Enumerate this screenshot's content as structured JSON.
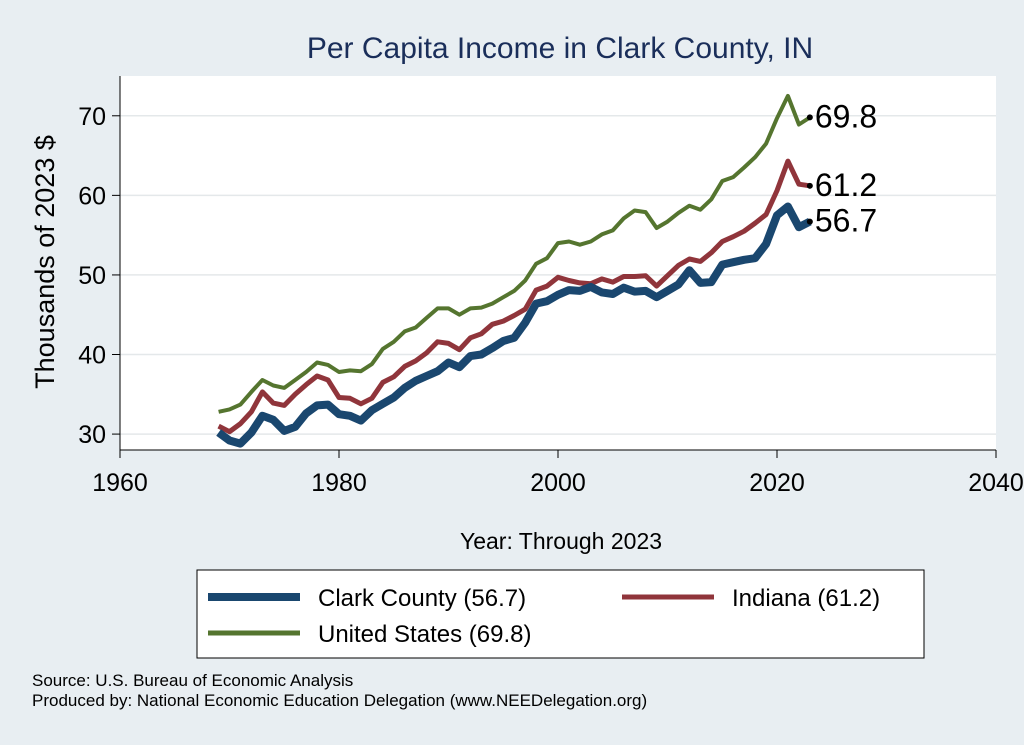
{
  "chart_data": {
    "type": "line",
    "title": "Per Capita Income in Clark County, IN",
    "xlabel": "Year: Through 2023",
    "ylabel": "Thousands of 2023 $",
    "xlim": [
      1960,
      2040
    ],
    "ylim": [
      28,
      75
    ],
    "x_ticks": [
      1960,
      1980,
      2000,
      2020,
      2040
    ],
    "y_ticks": [
      30,
      40,
      50,
      60,
      70
    ],
    "grid": true,
    "legend_position": "bottom",
    "x": [
      1969,
      1970,
      1971,
      1972,
      1973,
      1974,
      1975,
      1976,
      1977,
      1978,
      1979,
      1980,
      1981,
      1982,
      1983,
      1984,
      1985,
      1986,
      1987,
      1988,
      1989,
      1990,
      1991,
      1992,
      1993,
      1994,
      1995,
      1996,
      1997,
      1998,
      1999,
      2000,
      2001,
      2002,
      2003,
      2004,
      2005,
      2006,
      2007,
      2008,
      2009,
      2010,
      2011,
      2012,
      2013,
      2014,
      2015,
      2016,
      2017,
      2018,
      2019,
      2020,
      2021,
      2022,
      2023
    ],
    "series": [
      {
        "name": "Clark County (56.7)",
        "color": "#1a476f",
        "end_label": "56.7",
        "values": [
          30.2,
          29.2,
          28.8,
          30.2,
          32.3,
          31.8,
          30.4,
          30.9,
          32.6,
          33.6,
          33.7,
          32.5,
          32.3,
          31.7,
          33.0,
          33.8,
          34.6,
          35.8,
          36.7,
          37.3,
          37.9,
          39.0,
          38.4,
          39.8,
          40.0,
          40.8,
          41.7,
          42.1,
          44.0,
          46.4,
          46.7,
          47.5,
          48.1,
          48.0,
          48.5,
          47.8,
          47.6,
          48.4,
          47.9,
          48.0,
          47.2,
          48.0,
          48.8,
          50.6,
          49.0,
          49.1,
          51.3,
          51.6,
          51.9,
          52.1,
          53.9,
          57.5,
          58.6,
          56.0,
          56.7
        ]
      },
      {
        "name": "Indiana (61.2)",
        "color": "#90353b",
        "end_label": "61.2",
        "values": [
          31.0,
          30.3,
          31.3,
          32.8,
          35.3,
          33.9,
          33.6,
          35.0,
          36.2,
          37.3,
          36.8,
          34.6,
          34.5,
          33.8,
          34.5,
          36.5,
          37.2,
          38.5,
          39.2,
          40.2,
          41.6,
          41.4,
          40.6,
          42.1,
          42.6,
          43.8,
          44.2,
          44.9,
          45.7,
          48.1,
          48.6,
          49.7,
          49.3,
          49.0,
          48.9,
          49.5,
          49.1,
          49.8,
          49.8,
          49.9,
          48.6,
          49.9,
          51.2,
          52.0,
          51.7,
          52.8,
          54.2,
          54.8,
          55.5,
          56.5,
          57.6,
          60.6,
          64.3,
          61.4,
          61.2
        ]
      },
      {
        "name": "United States (69.8)",
        "color": "#55752f",
        "end_label": "69.8",
        "values": [
          32.8,
          33.1,
          33.7,
          35.3,
          36.8,
          36.1,
          35.8,
          36.8,
          37.8,
          39.0,
          38.7,
          37.8,
          38.0,
          37.9,
          38.8,
          40.7,
          41.6,
          42.9,
          43.4,
          44.6,
          45.8,
          45.8,
          45.0,
          45.8,
          45.9,
          46.4,
          47.2,
          48.0,
          49.3,
          51.4,
          52.1,
          54.0,
          54.2,
          53.8,
          54.2,
          55.1,
          55.6,
          57.1,
          58.1,
          57.9,
          55.9,
          56.7,
          57.8,
          58.7,
          58.2,
          59.5,
          61.8,
          62.3,
          63.5,
          64.8,
          66.5,
          69.7,
          72.5,
          68.9,
          69.8
        ]
      }
    ]
  },
  "source_line": "Source: U.S. Bureau of Economic Analysis",
  "produced_line": "Produced by: National Economic Education Delegation (www.NEEDelegation.org)"
}
